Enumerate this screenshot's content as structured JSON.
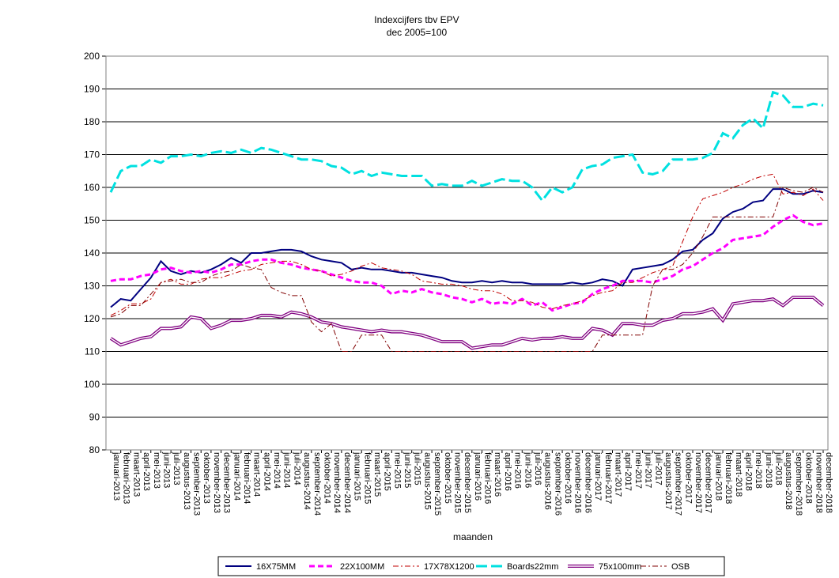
{
  "chart_data": {
    "type": "line",
    "title": "Indexcijfers tbv EPV",
    "subtitle": "dec 2005=100",
    "xlabel": "maanden",
    "ylabel": "",
    "ylim": [
      80,
      200
    ],
    "yticks": [
      80,
      90,
      100,
      110,
      120,
      130,
      140,
      150,
      160,
      170,
      180,
      190,
      200
    ],
    "grid": true,
    "legend_position": "bottom",
    "categories": [
      "januari-2013",
      "februari-2013",
      "maart-2013",
      "april-2013",
      "mei-2013",
      "juni-2013",
      "juli-2013",
      "augustus-2013",
      "september-2013",
      "oktober-2013",
      "november-2013",
      "december-2013",
      "januari-2014",
      "februari-2014",
      "maart-2014",
      "april-2014",
      "mei-2014",
      "juni-2014",
      "juli-2014",
      "augustus-2014",
      "september-2014",
      "oktober-2014",
      "november-2014",
      "december-2014",
      "januari-2015",
      "februari-2015",
      "maart-2015",
      "april-2015",
      "mei-2015",
      "juni-2015",
      "juli-2015",
      "augustus-2015",
      "september-2015",
      "oktober-2015",
      "november-2015",
      "december-2015",
      "januari-2016",
      "februari-2016",
      "maart-2016",
      "april-2016",
      "mei-2016",
      "juni-2016",
      "juli-2016",
      "augustus-2016",
      "september-2016",
      "oktober-2016",
      "november-2016",
      "december-2016",
      "januari-2017",
      "februari-2017",
      "maart-2017",
      "april-2017",
      "mei-2017",
      "juni-2017",
      "juli-2017",
      "augustus-2017",
      "september-2017",
      "oktober-2017",
      "november-2017",
      "december-2017",
      "januari-2018",
      "februari-2018",
      "maart-2018",
      "april-2018",
      "mei-2018",
      "juni-2018",
      "juli-2018",
      "augustus-2018",
      "september-2018",
      "oktober-2018",
      "november-2018",
      "december-2018"
    ],
    "series": [
      {
        "name": "16X75MM",
        "color": "#000080",
        "values": [
          123.5,
          126,
          125.5,
          129,
          132.5,
          137.5,
          134.5,
          133.5,
          134.5,
          134,
          135,
          136.5,
          138.5,
          137,
          140,
          140,
          140.5,
          141,
          141,
          140.5,
          139,
          138,
          137.5,
          137,
          135,
          135.5,
          135,
          135,
          134.5,
          134,
          134,
          133.5,
          133,
          132.5,
          131.5,
          131,
          131,
          131.5,
          131,
          131.5,
          131,
          131,
          130.5,
          130.5,
          130.5,
          130.5,
          131,
          130.5,
          131,
          132,
          131.5,
          130,
          135,
          135.5,
          136,
          136.5,
          138,
          140.5,
          141,
          144,
          146,
          150.5,
          152.5,
          153.5,
          155.5,
          156,
          159.5,
          159.5,
          158,
          158,
          159,
          158.5
        ]
      },
      {
        "name": "22X100MM",
        "color": "#ff00ff",
        "values": [
          131.5,
          132,
          132,
          133,
          133.5,
          135,
          135.5,
          134.5,
          134,
          134.5,
          134,
          135,
          136.5,
          136.5,
          137.5,
          138,
          138,
          137,
          136.5,
          135.5,
          135,
          134.5,
          133.5,
          132.5,
          131.5,
          131,
          131,
          130,
          127.5,
          128.5,
          128,
          129,
          128,
          127.5,
          126.5,
          126,
          125,
          126,
          124.5,
          125,
          124.5,
          126,
          124,
          125,
          122.5,
          123.5,
          124.5,
          125,
          127.5,
          129,
          130,
          131.5,
          131.5,
          131.5,
          131,
          132,
          133,
          135,
          136,
          138,
          140,
          141.5,
          144,
          144.5,
          145,
          145.5,
          148,
          150,
          151.5,
          149.5,
          148.5,
          149
        ]
      },
      {
        "name": "17X78X1200",
        "color": "#c00000",
        "values": [
          121,
          122.5,
          124.5,
          124.5,
          126,
          131,
          132,
          130.5,
          130.5,
          132,
          132.5,
          132.5,
          133.5,
          134.5,
          135,
          136.5,
          137,
          137.5,
          137.5,
          136.5,
          135,
          134.5,
          133,
          133.5,
          134.5,
          136,
          137,
          135.5,
          135,
          134.5,
          133.5,
          131.5,
          131,
          130.5,
          130.5,
          130,
          129,
          128.5,
          128.5,
          127.5,
          125.5,
          125.5,
          125,
          123.5,
          123,
          124,
          124.5,
          125.5,
          127,
          128,
          128.5,
          131,
          131,
          132.5,
          134,
          135,
          136,
          143.5,
          151,
          156.5,
          157.5,
          158.5,
          160,
          161,
          162.5,
          163.5,
          164,
          158,
          158.5,
          157.5,
          159.5,
          156
        ]
      },
      {
        "name": "Boards22mm",
        "color": "#00e0e0",
        "values": [
          158.5,
          165,
          166.5,
          166.5,
          168.5,
          167.5,
          169.5,
          169.5,
          170,
          169.5,
          170.5,
          171,
          170.5,
          171.5,
          170.5,
          172,
          171.5,
          170.5,
          169.5,
          168.5,
          168.5,
          168,
          166.5,
          166,
          164,
          165,
          163.5,
          164.5,
          164,
          163.5,
          163.5,
          163.5,
          160.5,
          161,
          160.5,
          160.5,
          162,
          160.5,
          161.5,
          162.5,
          162,
          162,
          160,
          156,
          160,
          158.5,
          160,
          165.5,
          166.5,
          167,
          169,
          169.5,
          170,
          164.5,
          164,
          165,
          168.5,
          168.5,
          168.5,
          169,
          170.5,
          176.5,
          175,
          179,
          181,
          178,
          189,
          188,
          184.5,
          184.5,
          185.5,
          185
        ]
      },
      {
        "name": "75x100mm",
        "color": "#800080",
        "values": [
          114,
          112,
          113,
          114,
          114.5,
          117,
          117,
          117.5,
          120.5,
          120,
          117,
          118,
          119.5,
          119.5,
          120,
          121,
          121,
          120.5,
          122,
          121.5,
          120.5,
          119,
          118.5,
          117.5,
          117,
          116.5,
          116,
          116.5,
          116,
          116,
          115.5,
          115,
          114,
          113,
          113,
          113,
          111,
          111.5,
          112,
          112,
          113,
          114,
          113.5,
          114,
          114,
          114.5,
          114,
          114,
          117,
          116.5,
          115,
          118.5,
          118.5,
          118,
          118,
          119.5,
          120,
          121.5,
          121.5,
          122,
          123,
          119.5,
          124.5,
          125,
          125.5,
          125.5,
          126,
          124,
          126.5,
          126.5,
          126.5,
          124
        ]
      },
      {
        "name": "OSB",
        "color": "#800000",
        "values": [
          120.5,
          121.5,
          124,
          124,
          127.5,
          131,
          131.5,
          132,
          131,
          131,
          133,
          134,
          134.5,
          136.5,
          135.5,
          135,
          129.5,
          128,
          127,
          127,
          119,
          116,
          118.5,
          110,
          110,
          115,
          115,
          115,
          110,
          110,
          110,
          110,
          110,
          110,
          110,
          110,
          110,
          110,
          110,
          110,
          110,
          110,
          110,
          110,
          110,
          110,
          110,
          110,
          110,
          115,
          115,
          115,
          115,
          115,
          130,
          135,
          135,
          136.5,
          140,
          145,
          151,
          151,
          151,
          151,
          151,
          151,
          151,
          160,
          159,
          158.5,
          160,
          158.5
        ]
      }
    ]
  }
}
